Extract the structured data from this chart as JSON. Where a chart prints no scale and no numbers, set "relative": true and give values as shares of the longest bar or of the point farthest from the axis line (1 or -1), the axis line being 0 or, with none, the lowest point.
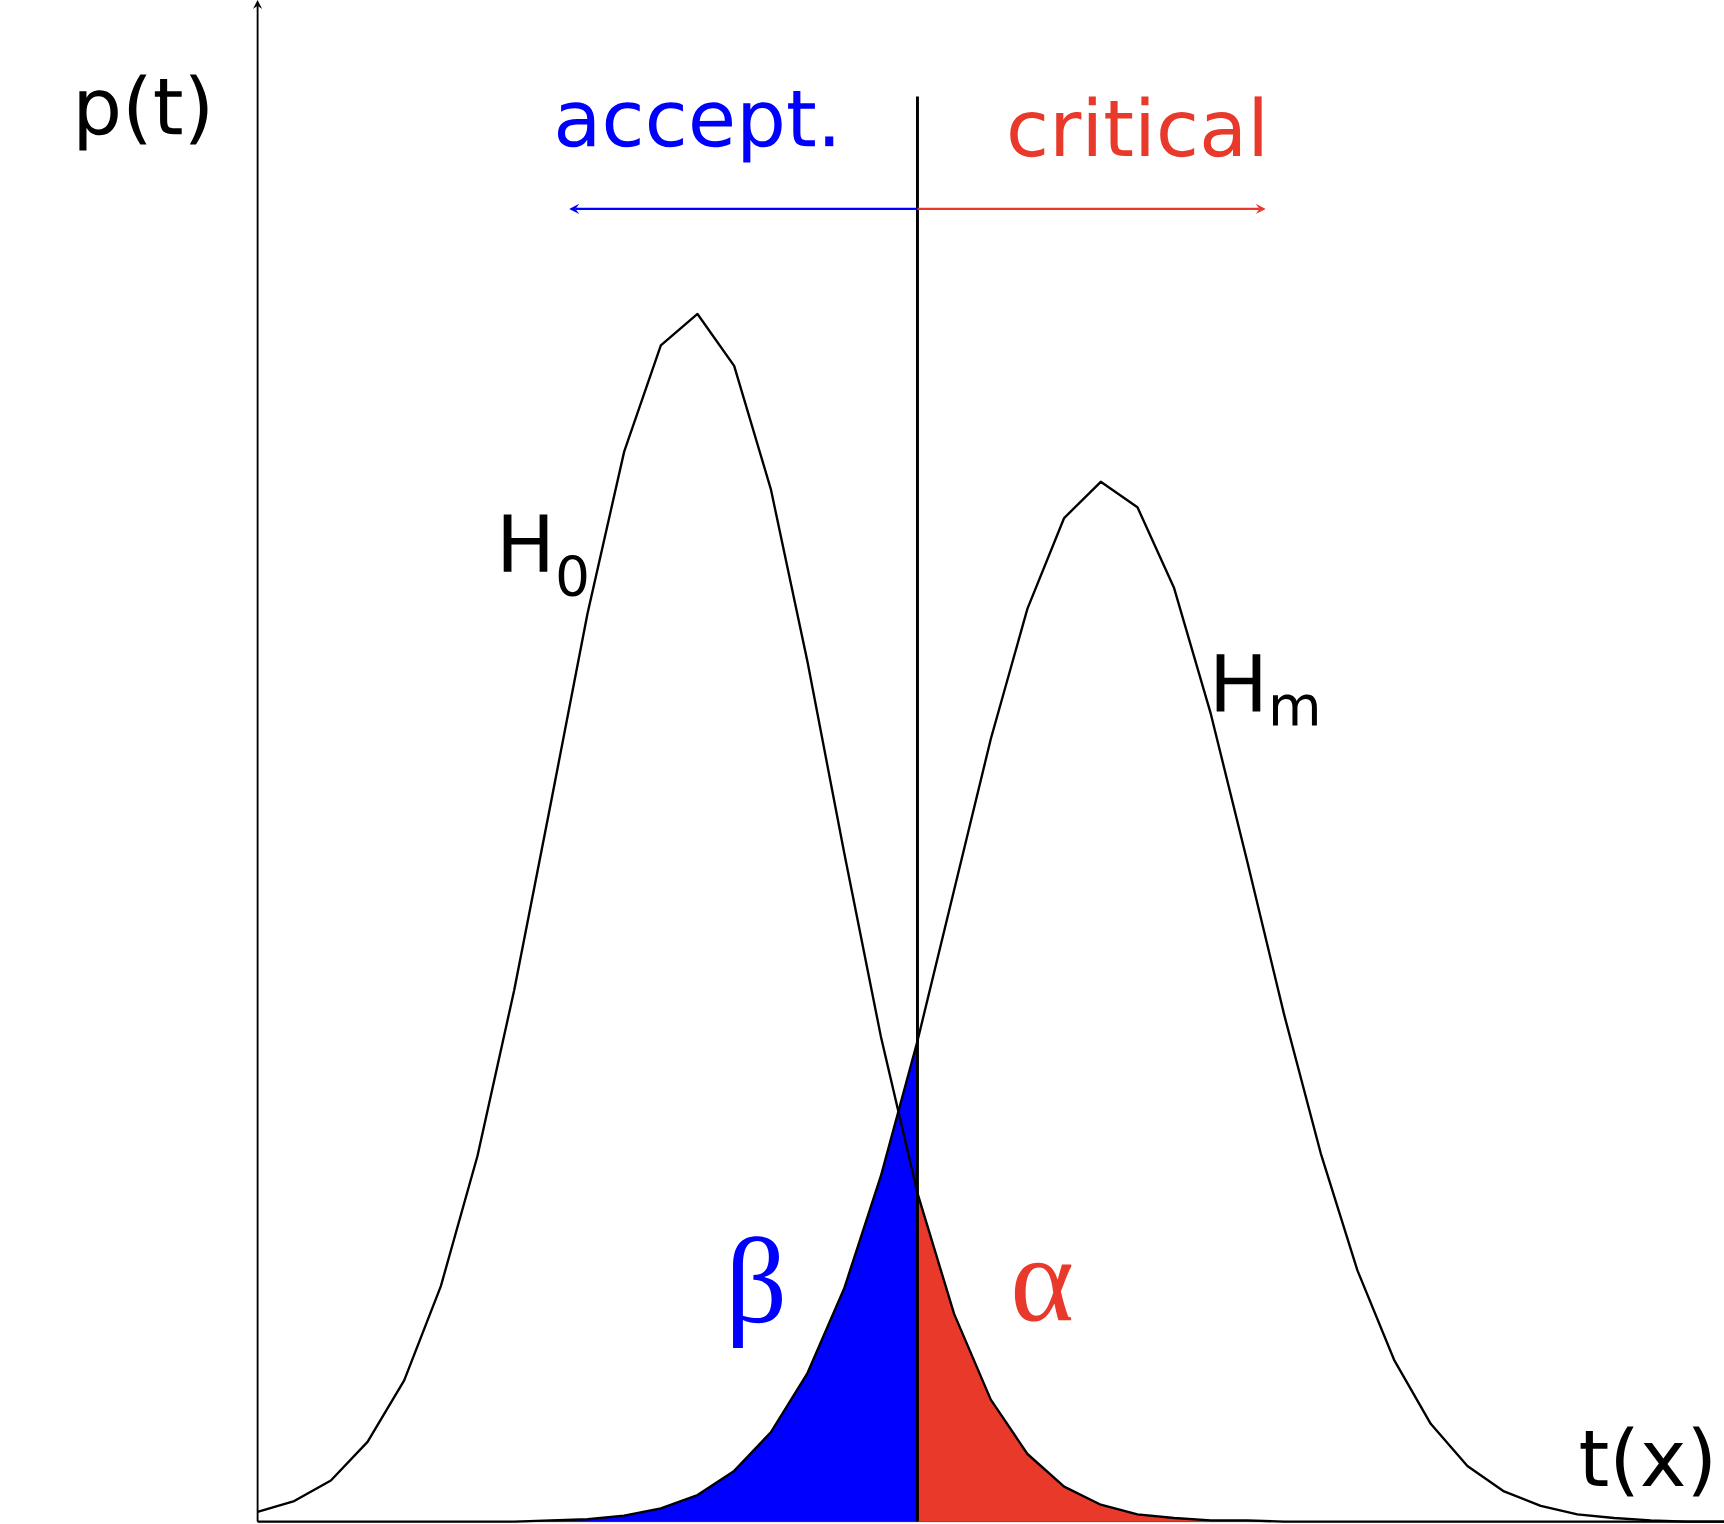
{
  "chart_data": {
    "type": "line",
    "relative": true,
    "xlabel": "t(x)",
    "ylabel": "p(t)",
    "categories": [
      null,
      null,
      null,
      null,
      null,
      null,
      null,
      null,
      null,
      null,
      null,
      null,
      null,
      null,
      null,
      null,
      null,
      null,
      null,
      null,
      null,
      null,
      null,
      null,
      null,
      null,
      null,
      null,
      null,
      null,
      null,
      null,
      null,
      null,
      null,
      null,
      null,
      null,
      null,
      null,
      null
    ],
    "annotations": [
      "accept.",
      "critical"
    ],
    "series": [
      {
        "name": "β",
        "type": "area",
        "color": "#0000ff",
        "values": [
          null,
          null,
          null,
          null,
          null,
          null,
          null,
          null,
          0.001,
          0.002,
          0.005,
          0.011,
          0.022,
          0.042,
          0.074,
          0.123,
          0.193,
          0.286,
          0.398,
          null,
          null,
          null,
          null,
          null,
          null,
          null,
          null,
          null,
          null,
          null,
          null,
          null,
          null,
          null,
          null,
          null,
          null,
          null,
          null,
          null,
          null
        ]
      },
      {
        "name": "α",
        "type": "area",
        "color": "#e8392a",
        "values": [
          null,
          null,
          null,
          null,
          null,
          null,
          null,
          null,
          null,
          null,
          null,
          null,
          null,
          null,
          null,
          null,
          null,
          null,
          0.272,
          0.172,
          0.101,
          0.056,
          0.029,
          0.014,
          0.006,
          0.003,
          0.001,
          null,
          null,
          null,
          null,
          null,
          null,
          null,
          null,
          null,
          null,
          null,
          null,
          null,
          null
        ]
      },
      {
        "name": "H$_{0}$",
        "color": "#000000",
        "values": [
          0.008,
          0.017,
          0.034,
          0.066,
          0.117,
          0.195,
          0.303,
          0.44,
          0.595,
          0.752,
          0.886,
          0.974,
          1,
          0.957,
          0.855,
          0.712,
          0.554,
          0.402,
          0.272,
          0.172,
          0.101,
          0.056,
          0.029,
          0.014,
          0.006,
          0.003,
          0.001,
          0.001,
          0,
          0,
          0,
          0,
          0,
          0,
          0,
          0,
          0,
          0,
          0,
          0,
          0
        ]
      },
      {
        "name": "H$_{m}$",
        "color": "#000000",
        "values": [
          0,
          0,
          0,
          0,
          0,
          0,
          0,
          0,
          0.001,
          0.002,
          0.005,
          0.011,
          0.022,
          0.042,
          0.074,
          0.123,
          0.193,
          0.286,
          0.398,
          0.523,
          0.648,
          0.756,
          0.831,
          0.861,
          0.84,
          0.773,
          0.669,
          0.546,
          0.42,
          0.305,
          0.208,
          0.134,
          0.081,
          0.046,
          0.025,
          0.013,
          0.006,
          0.003,
          0.001,
          0,
          0
        ]
      }
    ]
  }
}
